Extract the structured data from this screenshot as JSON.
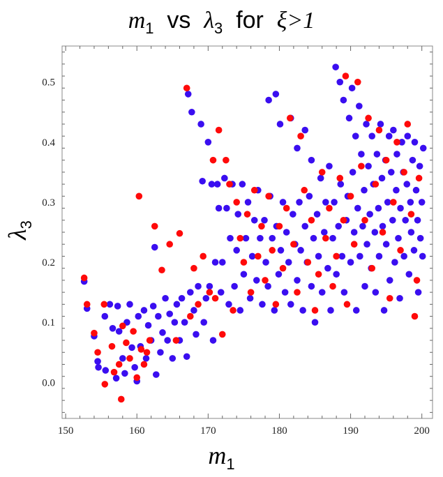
{
  "chart_data": {
    "type": "scatter",
    "title_parts": {
      "var1": "m",
      "sub1": "1",
      "vs": "vs",
      "var2": "λ",
      "sub2": "3",
      "for": "for",
      "cond": "ξ>1"
    },
    "xlabel": {
      "var": "m",
      "sub": "1"
    },
    "ylabel": {
      "var": "λ",
      "sub": "3"
    },
    "xlim": [
      149.5,
      201.5
    ],
    "ylim": [
      -0.06,
      0.56
    ],
    "x_ticks": [
      150,
      160,
      170,
      180,
      190,
      200
    ],
    "y_ticks": [
      0.0,
      0.1,
      0.2,
      0.3,
      0.4,
      0.5
    ],
    "x_tick_labels": [
      "150",
      "160",
      "170",
      "180",
      "190",
      "200"
    ],
    "y_tick_labels": [
      "0.0",
      "0.1",
      "0.2",
      "0.3",
      "0.4",
      "0.5"
    ],
    "colors": {
      "blue": "#3a0ef0",
      "red": "#ff0a0a"
    },
    "series": [
      {
        "name": "blue points",
        "color": "#3a0ef0",
        "points": [
          [
            152.6,
            0.168
          ],
          [
            153.0,
            0.123
          ],
          [
            154.0,
            0.077
          ],
          [
            154.5,
            0.035
          ],
          [
            154.6,
            0.025
          ],
          [
            155.5,
            0.11
          ],
          [
            155.6,
            0.02
          ],
          [
            156.2,
            0.13
          ],
          [
            156.6,
            0.09
          ],
          [
            157.1,
            0.007
          ],
          [
            157.3,
            0.127
          ],
          [
            157.5,
            0.085
          ],
          [
            158.0,
            0.04
          ],
          [
            158.3,
            0.015
          ],
          [
            158.6,
            0.1
          ],
          [
            159.0,
            0.13
          ],
          [
            159.3,
            0.058
          ],
          [
            159.7,
            0.025
          ],
          [
            160.0,
            0.002
          ],
          [
            160.2,
            0.11
          ],
          [
            160.5,
            0.06
          ],
          [
            161.0,
            0.12
          ],
          [
            161.3,
            0.04
          ],
          [
            161.6,
            0.095
          ],
          [
            162.0,
            0.07
          ],
          [
            162.3,
            0.127
          ],
          [
            162.5,
            0.225
          ],
          [
            162.7,
            0.013
          ],
          [
            163.0,
            0.11
          ],
          [
            163.3,
            0.05
          ],
          [
            163.6,
            0.083
          ],
          [
            164.0,
            0.14
          ],
          [
            164.3,
            0.07
          ],
          [
            164.6,
            0.114
          ],
          [
            165.0,
            0.04
          ],
          [
            165.3,
            0.1
          ],
          [
            165.6,
            0.13
          ],
          [
            166.0,
            0.07
          ],
          [
            166.3,
            0.14
          ],
          [
            166.7,
            0.1
          ],
          [
            167.0,
            0.043
          ],
          [
            167.2,
            0.48
          ],
          [
            167.5,
            0.15
          ],
          [
            167.7,
            0.45
          ],
          [
            168.0,
            0.12
          ],
          [
            168.3,
            0.08
          ],
          [
            168.6,
            0.16
          ],
          [
            169.0,
            0.43
          ],
          [
            169.2,
            0.335
          ],
          [
            169.4,
            0.1
          ],
          [
            169.7,
            0.14
          ],
          [
            170.0,
            0.4
          ],
          [
            170.2,
            0.16
          ],
          [
            170.5,
            0.33
          ],
          [
            170.7,
            0.07
          ],
          [
            171.0,
            0.2
          ],
          [
            171.3,
            0.33
          ],
          [
            171.5,
            0.29
          ],
          [
            171.8,
            0.15
          ],
          [
            172.0,
            0.2
          ],
          [
            172.3,
            0.34
          ],
          [
            172.6,
            0.29
          ],
          [
            172.9,
            0.13
          ],
          [
            173.1,
            0.24
          ],
          [
            173.4,
            0.33
          ],
          [
            173.7,
            0.16
          ],
          [
            174.0,
            0.22
          ],
          [
            174.2,
            0.28
          ],
          [
            174.5,
            0.12
          ],
          [
            174.8,
            0.33
          ],
          [
            175.0,
            0.18
          ],
          [
            175.3,
            0.24
          ],
          [
            175.6,
            0.3
          ],
          [
            175.9,
            0.14
          ],
          [
            176.2,
            0.21
          ],
          [
            176.5,
            0.27
          ],
          [
            176.8,
            0.17
          ],
          [
            177.0,
            0.32
          ],
          [
            177.3,
            0.24
          ],
          [
            177.6,
            0.13
          ],
          [
            177.9,
            0.27
          ],
          [
            178.1,
            0.2
          ],
          [
            178.4,
            0.16
          ],
          [
            178.5,
            0.47
          ],
          [
            178.7,
            0.31
          ],
          [
            179.0,
            0.24
          ],
          [
            179.3,
            0.12
          ],
          [
            179.5,
            0.48
          ],
          [
            179.6,
            0.26
          ],
          [
            179.9,
            0.18
          ],
          [
            180.1,
            0.43
          ],
          [
            180.2,
            0.22
          ],
          [
            180.5,
            0.3
          ],
          [
            180.8,
            0.15
          ],
          [
            181.0,
            0.25
          ],
          [
            181.3,
            0.2
          ],
          [
            181.6,
            0.44
          ],
          [
            181.6,
            0.13
          ],
          [
            181.9,
            0.28
          ],
          [
            182.2,
            0.23
          ],
          [
            182.5,
            0.39
          ],
          [
            182.5,
            0.17
          ],
          [
            182.8,
            0.3
          ],
          [
            183.0,
            0.22
          ],
          [
            183.3,
            0.12
          ],
          [
            183.6,
            0.42
          ],
          [
            183.6,
            0.26
          ],
          [
            183.9,
            0.2
          ],
          [
            184.2,
            0.31
          ],
          [
            184.5,
            0.37
          ],
          [
            184.5,
            0.16
          ],
          [
            184.8,
            0.24
          ],
          [
            185.0,
            0.1
          ],
          [
            185.3,
            0.28
          ],
          [
            185.5,
            0.21
          ],
          [
            185.8,
            0.34
          ],
          [
            186.0,
            0.15
          ],
          [
            186.3,
            0.25
          ],
          [
            186.5,
            0.3
          ],
          [
            186.8,
            0.19
          ],
          [
            187.0,
            0.36
          ],
          [
            187.2,
            0.12
          ],
          [
            187.5,
            0.24
          ],
          [
            187.7,
            0.3
          ],
          [
            187.9,
            0.525
          ],
          [
            188.0,
            0.18
          ],
          [
            188.3,
            0.26
          ],
          [
            188.5,
            0.5
          ],
          [
            188.6,
            0.33
          ],
          [
            188.8,
            0.21
          ],
          [
            189.0,
            0.47
          ],
          [
            189.1,
            0.15
          ],
          [
            189.4,
            0.27
          ],
          [
            189.6,
            0.31
          ],
          [
            189.8,
            0.44
          ],
          [
            190.0,
            0.2
          ],
          [
            190.2,
            0.49
          ],
          [
            190.3,
            0.35
          ],
          [
            190.5,
            0.25
          ],
          [
            190.7,
            0.41
          ],
          [
            190.8,
            0.12
          ],
          [
            191.0,
            0.29
          ],
          [
            191.2,
            0.46
          ],
          [
            191.3,
            0.21
          ],
          [
            191.5,
            0.38
          ],
          [
            191.7,
            0.26
          ],
          [
            191.9,
            0.32
          ],
          [
            192.0,
            0.16
          ],
          [
            192.2,
            0.43
          ],
          [
            192.3,
            0.23
          ],
          [
            192.5,
            0.36
          ],
          [
            192.7,
            0.28
          ],
          [
            192.9,
            0.19
          ],
          [
            193.0,
            0.41
          ],
          [
            193.2,
            0.33
          ],
          [
            193.4,
            0.25
          ],
          [
            193.5,
            0.15
          ],
          [
            193.7,
            0.38
          ],
          [
            193.9,
            0.29
          ],
          [
            194.0,
            0.21
          ],
          [
            194.2,
            0.43
          ],
          [
            194.4,
            0.34
          ],
          [
            194.5,
            0.26
          ],
          [
            194.7,
            0.12
          ],
          [
            194.9,
            0.37
          ],
          [
            195.0,
            0.23
          ],
          [
            195.2,
            0.3
          ],
          [
            195.4,
            0.41
          ],
          [
            195.5,
            0.17
          ],
          [
            195.7,
            0.35
          ],
          [
            195.9,
            0.27
          ],
          [
            196.0,
            0.42
          ],
          [
            196.2,
            0.2
          ],
          [
            196.4,
            0.32
          ],
          [
            196.5,
            0.38
          ],
          [
            196.7,
            0.24
          ],
          [
            196.9,
            0.14
          ],
          [
            197.0,
            0.29
          ],
          [
            197.2,
            0.4
          ],
          [
            197.4,
            0.35
          ],
          [
            197.5,
            0.21
          ],
          [
            197.7,
            0.27
          ],
          [
            197.9,
            0.33
          ],
          [
            198.0,
            0.41
          ],
          [
            198.2,
            0.18
          ],
          [
            198.4,
            0.3
          ],
          [
            198.5,
            0.25
          ],
          [
            198.7,
            0.37
          ],
          [
            198.9,
            0.22
          ],
          [
            199.0,
            0.4
          ],
          [
            199.2,
            0.32
          ],
          [
            199.4,
            0.27
          ],
          [
            199.5,
            0.15
          ],
          [
            199.7,
            0.36
          ],
          [
            199.8,
            0.24
          ],
          [
            200.0,
            0.3
          ],
          [
            200.1,
            0.21
          ],
          [
            200.2,
            0.39
          ]
        ]
      },
      {
        "name": "red points",
        "color": "#ff0a0a",
        "points": [
          [
            152.6,
            0.174
          ],
          [
            153.0,
            0.13
          ],
          [
            154.0,
            0.082
          ],
          [
            154.5,
            0.05
          ],
          [
            155.4,
            0.13
          ],
          [
            155.5,
            -0.003
          ],
          [
            156.5,
            0.06
          ],
          [
            156.8,
            0.017
          ],
          [
            157.5,
            0.03
          ],
          [
            157.8,
            -0.028
          ],
          [
            158.0,
            0.094
          ],
          [
            158.5,
            0.066
          ],
          [
            159.0,
            0.04
          ],
          [
            159.5,
            0.085
          ],
          [
            160.0,
            0.008
          ],
          [
            160.3,
            0.31
          ],
          [
            160.6,
            0.055
          ],
          [
            161.0,
            0.03
          ],
          [
            161.4,
            0.05
          ],
          [
            161.8,
            0.07
          ],
          [
            162.5,
            0.26
          ],
          [
            163.5,
            0.187
          ],
          [
            164.6,
            0.23
          ],
          [
            165.5,
            0.07
          ],
          [
            166.0,
            0.248
          ],
          [
            167.0,
            0.49
          ],
          [
            167.5,
            0.11
          ],
          [
            168.0,
            0.19
          ],
          [
            168.6,
            0.13
          ],
          [
            169.3,
            0.21
          ],
          [
            170.2,
            0.15
          ],
          [
            170.7,
            0.37
          ],
          [
            171.0,
            0.14
          ],
          [
            171.5,
            0.42
          ],
          [
            172.0,
            0.08
          ],
          [
            172.5,
            0.37
          ],
          [
            173.0,
            0.33
          ],
          [
            173.5,
            0.12
          ],
          [
            174.0,
            0.3
          ],
          [
            174.5,
            0.24
          ],
          [
            175.0,
            0.2
          ],
          [
            175.5,
            0.28
          ],
          [
            176.0,
            0.15
          ],
          [
            176.5,
            0.32
          ],
          [
            177.0,
            0.21
          ],
          [
            177.5,
            0.26
          ],
          [
            178.0,
            0.17
          ],
          [
            178.5,
            0.31
          ],
          [
            179.0,
            0.22
          ],
          [
            179.5,
            0.13
          ],
          [
            180.0,
            0.26
          ],
          [
            180.5,
            0.19
          ],
          [
            181.0,
            0.29
          ],
          [
            181.5,
            0.44
          ],
          [
            182.0,
            0.23
          ],
          [
            182.5,
            0.15
          ],
          [
            183.0,
            0.41
          ],
          [
            183.5,
            0.32
          ],
          [
            184.0,
            0.2
          ],
          [
            184.5,
            0.27
          ],
          [
            185.0,
            0.12
          ],
          [
            185.5,
            0.18
          ],
          [
            186.0,
            0.35
          ],
          [
            186.5,
            0.24
          ],
          [
            187.0,
            0.29
          ],
          [
            187.5,
            0.16
          ],
          [
            188.0,
            0.21
          ],
          [
            188.5,
            0.34
          ],
          [
            189.0,
            0.27
          ],
          [
            189.3,
            0.51
          ],
          [
            189.5,
            0.13
          ],
          [
            190.0,
            0.31
          ],
          [
            190.5,
            0.23
          ],
          [
            191.0,
            0.5
          ],
          [
            191.5,
            0.36
          ],
          [
            192.0,
            0.27
          ],
          [
            192.5,
            0.44
          ],
          [
            193.0,
            0.19
          ],
          [
            193.5,
            0.33
          ],
          [
            194.0,
            0.42
          ],
          [
            194.5,
            0.25
          ],
          [
            195.0,
            0.37
          ],
          [
            195.5,
            0.14
          ],
          [
            196.0,
            0.3
          ],
          [
            196.5,
            0.4
          ],
          [
            197.0,
            0.22
          ],
          [
            197.5,
            0.35
          ],
          [
            198.0,
            0.43
          ],
          [
            198.5,
            0.28
          ],
          [
            199.0,
            0.11
          ],
          [
            199.3,
            0.17
          ],
          [
            199.6,
            0.34
          ]
        ]
      }
    ]
  }
}
